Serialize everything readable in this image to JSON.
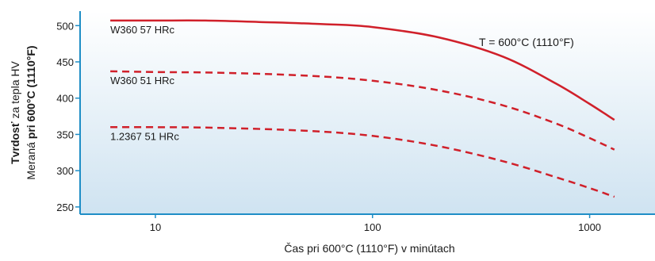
{
  "chart_data": {
    "type": "line",
    "xscale": "log",
    "xlim": [
      4.5,
      2000
    ],
    "ylim": [
      240,
      520
    ],
    "xticks": [
      10,
      100,
      1000
    ],
    "xtick_labels": [
      "10",
      "100",
      "1000"
    ],
    "yticks": [
      250,
      300,
      350,
      400,
      450,
      500
    ],
    "ytick_labels": [
      "250",
      "300",
      "350",
      "400",
      "450",
      "500"
    ],
    "ylabel_line1": {
      "bold": "Tvrdosť",
      "normal": " za tepla HV"
    },
    "ylabel_line2": {
      "normal": "Meraná",
      "bold": " pri 600°C (1110°F)"
    },
    "xlabel": "Čas pri 600°C (1110°F) v minútach",
    "annotation": "T = 600°C (1110°F)",
    "background_gradient": [
      "#ffffff",
      "#cfe3f1"
    ],
    "axis_color": "#1f8ec6",
    "series": [
      {
        "name": "W360 57 HRc",
        "color": "#d0202a",
        "dash": "solid",
        "x": [
          6.2,
          10,
          17,
          30,
          60,
          100,
          200,
          400,
          700,
          1000,
          1300
        ],
        "y": [
          507,
          507,
          507,
          505,
          502,
          498,
          484,
          457,
          420,
          392,
          370
        ]
      },
      {
        "name": "W360 51 HRc",
        "color": "#d0202a",
        "dash": "dashed",
        "x": [
          6.2,
          10,
          20,
          50,
          100,
          200,
          400,
          700,
          1000,
          1300
        ],
        "y": [
          437,
          436,
          435,
          431,
          424,
          411,
          390,
          365,
          345,
          329
        ]
      },
      {
        "name": "1.2367 51 HRc",
        "color": "#d0202a",
        "dash": "dashed",
        "x": [
          6.2,
          10,
          20,
          50,
          100,
          200,
          400,
          700,
          1000,
          1300
        ],
        "y": [
          360,
          360,
          359,
          355,
          348,
          334,
          313,
          291,
          276,
          264
        ]
      }
    ]
  }
}
